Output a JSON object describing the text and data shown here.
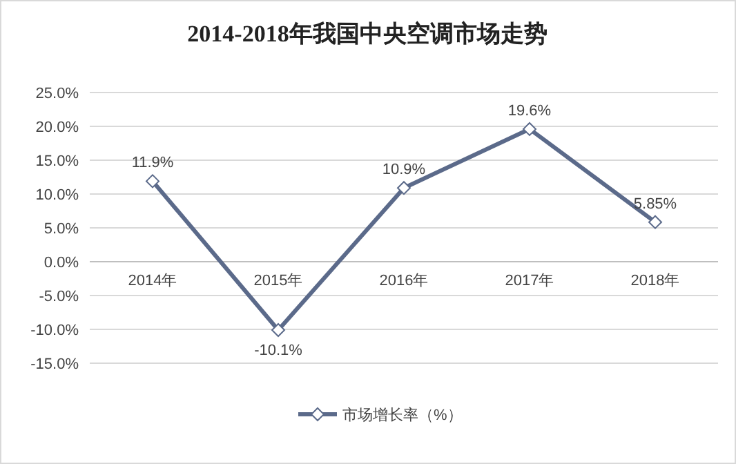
{
  "chart_data": {
    "type": "line",
    "title": "2014-2018年我国中央空调市场走势",
    "categories": [
      "2014年",
      "2015年",
      "2016年",
      "2017年",
      "2018年"
    ],
    "series": [
      {
        "name": "市场增长率（%）",
        "color": "#5b6a8a",
        "values": [
          11.9,
          -10.1,
          10.9,
          19.6,
          5.85
        ],
        "value_labels": [
          "11.9%",
          "-10.1%",
          "10.9%",
          "19.6%",
          "5.85%"
        ]
      }
    ],
    "ylim": [
      -15,
      25
    ],
    "yticks": [
      {
        "value": -15,
        "label": "-15.0%"
      },
      {
        "value": -10,
        "label": "-10.0%"
      },
      {
        "value": -5,
        "label": "-5.0%"
      },
      {
        "value": 0,
        "label": "0.0%"
      },
      {
        "value": 5,
        "label": "5.0%"
      },
      {
        "value": 10,
        "label": "10.0%"
      },
      {
        "value": 15,
        "label": "15.0%"
      },
      {
        "value": 20,
        "label": "20.0%"
      },
      {
        "value": 25,
        "label": "25.0%"
      }
    ],
    "grid": "y",
    "legend": "bottom",
    "marker": "diamond",
    "line_style": "solid"
  }
}
